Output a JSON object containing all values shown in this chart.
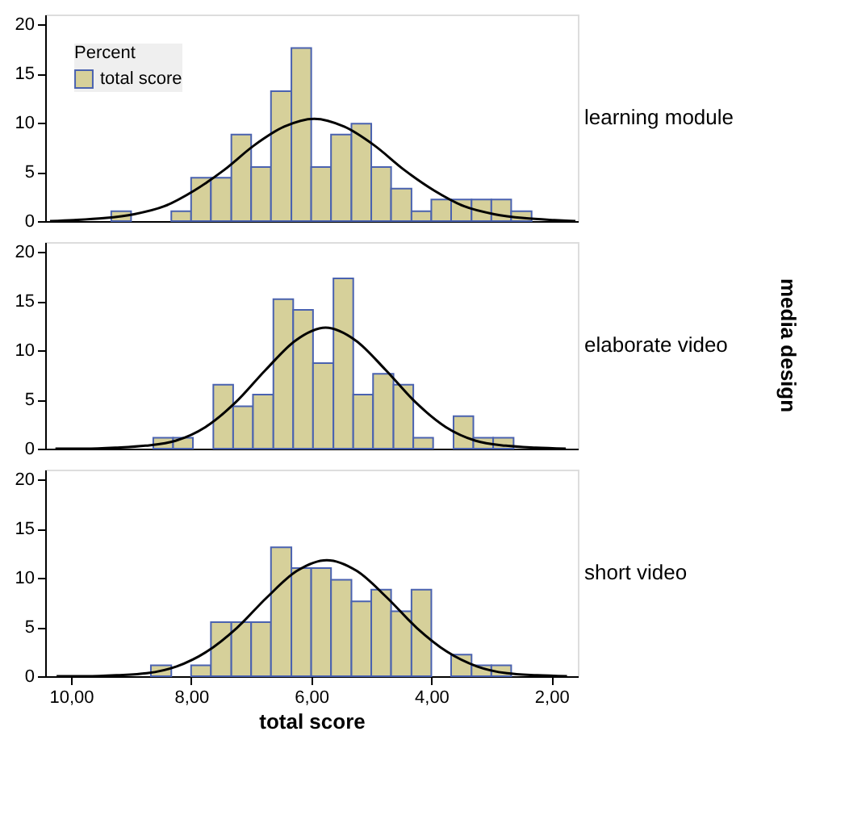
{
  "chart_data": [
    {
      "type": "histogram",
      "legend": "top left",
      "legend_title": "Percent",
      "tick_labels": "y",
      "xlim": [
        10.43,
        1.56
      ],
      "ylim": [
        0,
        21
      ],
      "yticks": [
        0,
        5,
        10,
        15,
        20
      ],
      "grid": false,
      "annotations": [
        "learning module"
      ],
      "series": [
        {
          "name": "total score",
          "color": "#d6d09a",
          "bins": [
            9.33,
            9.0
          ],
          "values": [
            1.0
          ]
        },
        {
          "color": "#d6d09a",
          "bins": [
            8.33,
            8.0,
            7.67,
            7.33,
            7.0,
            6.67,
            6.33,
            6.0,
            5.67,
            5.33,
            5.0,
            4.67,
            4.33,
            4.0,
            3.67,
            3.33,
            3.0,
            2.67,
            2.33
          ],
          "values": [
            1.0,
            4.4,
            4.4,
            8.8,
            5.5,
            13.2,
            17.6,
            5.5,
            8.8,
            9.9,
            5.5,
            3.3,
            1.0,
            2.2,
            2.2,
            2.2,
            2.2,
            1.0
          ]
        },
        {
          "type": "line",
          "color": "#000000",
          "x": [
            10.35,
            9.95,
            9.45,
            8.95,
            8.45,
            7.95,
            7.45,
            6.95,
            6.45,
            5.95,
            5.45,
            4.95,
            4.45,
            3.95,
            3.45,
            2.95,
            2.45,
            1.95,
            1.6
          ],
          "values": [
            0.0,
            0.1,
            0.3,
            0.7,
            1.5,
            3.1,
            5.2,
            7.7,
            9.6,
            10.4,
            9.6,
            7.7,
            5.2,
            3.1,
            1.5,
            0.7,
            0.3,
            0.1,
            0.0
          ]
        }
      ]
    },
    {
      "type": "histogram",
      "legend": false,
      "tick_labels": "y",
      "xlim": [
        10.43,
        1.56
      ],
      "ylim": [
        0,
        21
      ],
      "yticks": [
        0,
        5,
        10,
        15,
        20
      ],
      "grid": false,
      "annotations": [
        "elaborate video",
        "media design"
      ],
      "series": [
        {
          "color": "#d6d09a",
          "bins": [
            8.63,
            8.3,
            7.97,
            7.63,
            7.3,
            6.97,
            6.63,
            6.3,
            5.97,
            5.63,
            5.3,
            4.97,
            4.63,
            4.3,
            3.97,
            3.63,
            3.3,
            2.97,
            2.63
          ],
          "values": [
            1.1,
            1.1,
            0,
            6.5,
            4.3,
            5.5,
            15.2,
            14.1,
            8.7,
            17.3,
            5.5,
            7.6,
            6.5,
            1.1,
            0,
            3.3,
            1.1,
            1.1
          ]
        },
        {
          "type": "line",
          "color": "#000000",
          "x": [
            10.26,
            9.76,
            9.26,
            8.76,
            8.26,
            7.76,
            7.26,
            6.76,
            6.26,
            5.76,
            5.26,
            4.76,
            4.26,
            3.76,
            3.26,
            2.76,
            2.26,
            1.76
          ],
          "values": [
            0.0,
            0.0,
            0.1,
            0.3,
            0.8,
            2.2,
            4.7,
            8.0,
            11.0,
            12.3,
            11.0,
            8.0,
            4.7,
            2.2,
            0.8,
            0.3,
            0.1,
            0.0
          ]
        }
      ]
    },
    {
      "type": "histogram",
      "legend": false,
      "xlabel": "total score",
      "xlim": [
        10.43,
        1.56
      ],
      "xticks": [
        {
          "value": 10,
          "label": "10,00"
        },
        {
          "value": 8,
          "label": "8,00"
        },
        {
          "value": 6,
          "label": "6,00"
        },
        {
          "value": 4,
          "label": "4,00"
        },
        {
          "value": 2,
          "label": "2,00"
        }
      ],
      "ylim": [
        0,
        21
      ],
      "yticks": [
        0,
        5,
        10,
        15,
        20
      ],
      "grid": false,
      "annotations": [
        "short video"
      ],
      "series": [
        {
          "color": "#d6d09a",
          "bins": [
            8.67,
            8.33,
            8.0,
            7.67,
            7.33,
            7.0,
            6.67,
            6.33,
            6.0,
            5.67,
            5.33,
            5.0,
            4.67,
            4.33,
            4.0,
            3.67,
            3.33,
            3.0,
            2.67
          ],
          "values": [
            1.1,
            0,
            1.1,
            5.5,
            5.5,
            5.5,
            13.1,
            11.0,
            11.0,
            9.8,
            7.6,
            8.8,
            6.6,
            8.8,
            0,
            2.2,
            1.1,
            1.1
          ]
        },
        {
          "type": "line",
          "color": "#000000",
          "x": [
            10.24,
            9.74,
            9.24,
            8.74,
            8.24,
            7.74,
            7.24,
            6.74,
            6.24,
            5.74,
            5.24,
            4.74,
            4.24,
            3.74,
            3.24,
            2.74,
            2.24,
            1.74
          ],
          "values": [
            0.0,
            0.0,
            0.1,
            0.3,
            1.0,
            2.5,
            4.9,
            8.0,
            10.7,
            11.8,
            10.7,
            8.0,
            4.9,
            2.5,
            1.0,
            0.3,
            0.1,
            0.0
          ]
        }
      ]
    }
  ]
}
